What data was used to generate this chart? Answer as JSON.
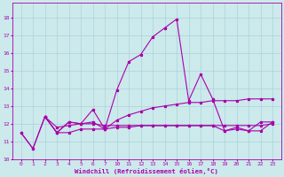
{
  "xlabel": "Windchill (Refroidissement éolien,°C)",
  "bg_color": "#cce9ec",
  "line_color": "#aa00aa",
  "grid_color": "#aad4d8",
  "ylim": [
    10.0,
    18.8
  ],
  "yticks": [
    10,
    11,
    12,
    13,
    14,
    15,
    16,
    17,
    18
  ],
  "xlabels": [
    "0",
    "1",
    "2",
    "3",
    "4",
    "5",
    "6",
    "7",
    "10",
    "11",
    "12",
    "13",
    "14",
    "15",
    "16",
    "17",
    "18",
    "19",
    "20",
    "21",
    "22",
    "23"
  ],
  "series1_y": [
    11.5,
    10.6,
    12.4,
    11.5,
    12.1,
    12.0,
    12.8,
    11.7,
    13.9,
    15.5,
    15.9,
    16.9,
    17.4,
    17.9,
    13.3,
    14.8,
    13.4,
    11.6,
    11.8,
    11.6,
    12.1,
    12.1
  ],
  "series2_y": [
    11.5,
    10.6,
    12.4,
    11.5,
    11.5,
    11.7,
    11.7,
    11.7,
    11.8,
    11.8,
    11.9,
    11.9,
    11.9,
    11.9,
    11.9,
    11.9,
    11.9,
    11.9,
    11.9,
    11.9,
    11.9,
    12.0
  ],
  "series3_y": [
    null,
    null,
    12.4,
    11.5,
    12.1,
    12.0,
    12.1,
    11.7,
    12.2,
    12.5,
    12.7,
    12.9,
    13.0,
    13.1,
    13.2,
    13.2,
    13.3,
    13.3,
    13.3,
    13.4,
    13.4,
    13.4
  ],
  "series4_y": [
    null,
    null,
    12.4,
    11.8,
    11.9,
    12.0,
    12.0,
    11.9,
    11.9,
    11.9,
    11.9,
    11.9,
    11.9,
    11.9,
    11.9,
    11.9,
    11.9,
    11.6,
    11.7,
    11.6,
    11.6,
    12.1
  ],
  "lw": 0.8,
  "ms": 2.2,
  "tick_fontsize": 4.5,
  "xlabel_fontsize": 5.2
}
